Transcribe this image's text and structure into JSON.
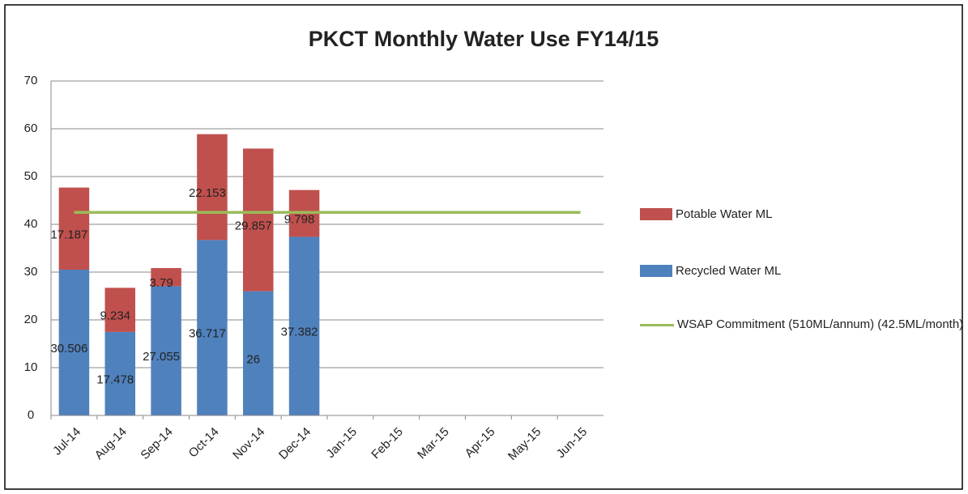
{
  "chart_data": {
    "type": "bar",
    "stacked": true,
    "title": "PKCT Monthly Water Use FY14/15",
    "categories": [
      "Jul-14",
      "Aug-14",
      "Sep-14",
      "Oct-14",
      "Nov-14",
      "Dec-14",
      "Jan-15",
      "Feb-15",
      "Mar-15",
      "Apr-15",
      "May-15",
      "Jun-15"
    ],
    "series": [
      {
        "name": "Recycled Water ML",
        "color": "#4f81bd",
        "values": [
          30.506,
          17.478,
          27.055,
          36.717,
          26,
          37.382,
          null,
          null,
          null,
          null,
          null,
          null
        ]
      },
      {
        "name": "Potable Water ML",
        "color": "#c0504d",
        "values": [
          17.187,
          9.234,
          3.79,
          22.153,
          29.857,
          9.798,
          null,
          null,
          null,
          null,
          null,
          null
        ]
      },
      {
        "name": "WSAP Commitment (510ML/annum) (42.5ML/month)",
        "type": "line",
        "color": "#9bbb59",
        "values": [
          42.5,
          42.5,
          42.5,
          42.5,
          42.5,
          42.5,
          42.5,
          42.5,
          42.5,
          42.5,
          42.5,
          42.5
        ]
      }
    ],
    "ylim": [
      0,
      70
    ],
    "yticks": [
      0,
      10,
      20,
      30,
      40,
      50,
      60,
      70
    ],
    "grid": true,
    "legend": "right"
  }
}
